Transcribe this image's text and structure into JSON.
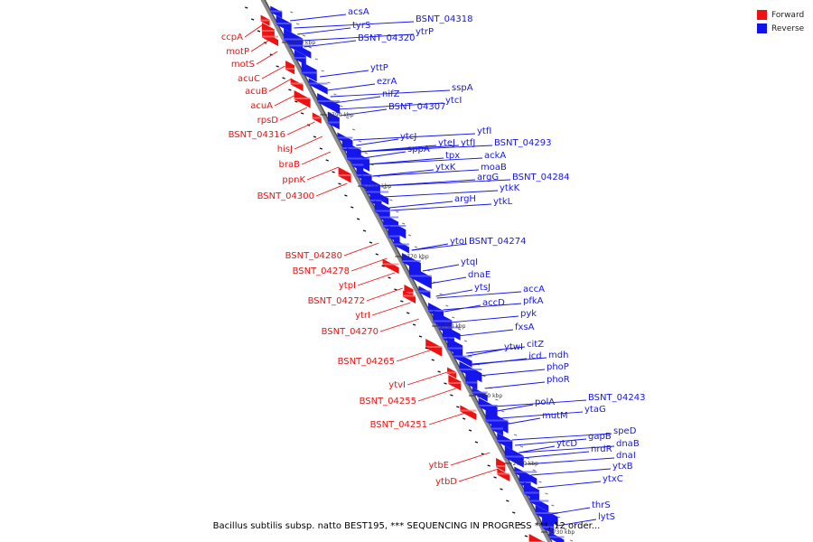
{
  "legend": {
    "forward": {
      "label": "Forward",
      "color": "#ee1111"
    },
    "reverse": {
      "label": "Reverse",
      "color": "#1111ee"
    }
  },
  "caption": "Bacillus subtilis subsp. natto BEST195, *** SEQUENCING IN PROGRESS ***, 12 order...",
  "ticks": [
    "2800 kbp",
    "2790 kbp",
    "2780 kbp",
    "2770 kbp",
    "2760 kbp",
    "2750 kbp",
    "2740 kbp",
    "2730 kbp"
  ],
  "genes_reverse": [
    "acsA",
    "tyrS",
    "BSNT_04318",
    "BSNT_04320",
    "ytrP",
    "yttP",
    "ezrA",
    "nifZ",
    "sspA",
    "BSNT_04307",
    "ytcI",
    "ytcJ",
    "ytfI",
    "ytfJ",
    "sppA",
    "yteJ",
    "tpx",
    "BSNT_04293",
    "ackA",
    "ytxK",
    "moaB",
    "argG",
    "BSNT_04284",
    "ytkK",
    "argH",
    "ytkL",
    "ytoI",
    "BSNT_04274",
    "ytqI",
    "dnaE",
    "ytsJ",
    "accA",
    "accD",
    "pfkA",
    "pyk",
    "fxsA",
    "ytwI",
    "citZ",
    "icd",
    "mdh",
    "phoP",
    "phoR",
    "polA",
    "BSNT_04243",
    "mutM",
    "ytaG",
    "ytcD",
    "gapB",
    "speD",
    "nrdR",
    "dnaB",
    "dnaI",
    "ytxB",
    "ytxC",
    "thrS",
    "lytS"
  ],
  "genes_forward": [
    "ccpA",
    "motP",
    "motS",
    "acuC",
    "acuB",
    "acuA",
    "rpsD",
    "BSNT_04316",
    "hisJ",
    "braB",
    "ppnK",
    "BSNT_04300",
    "BSNT_04280",
    "BSNT_04278",
    "ytpI",
    "BSNT_04272",
    "ytrI",
    "BSNT_04270",
    "BSNT_04265",
    "ytvI",
    "BSNT_04255",
    "BSNT_04251",
    "ytbE",
    "ytbD"
  ]
}
